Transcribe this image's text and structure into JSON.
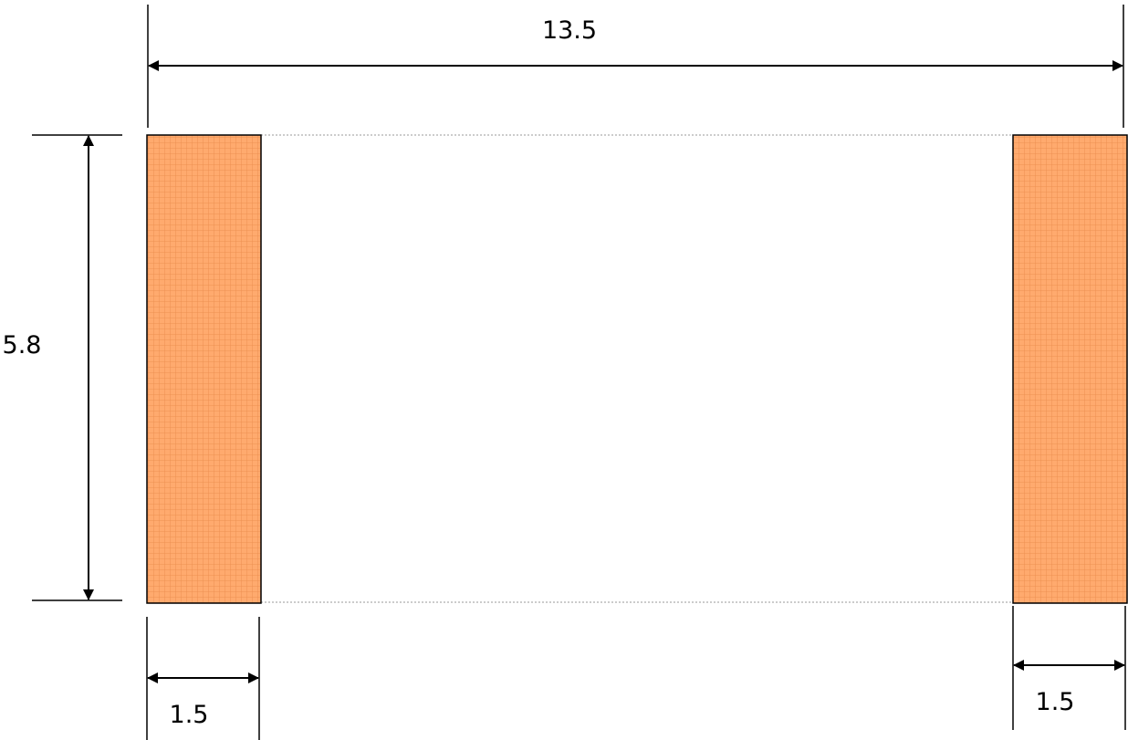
{
  "dimensions": {
    "total_width": "13.5",
    "height": "5.8",
    "left_pad_width": "1.5",
    "right_pad_width": "1.5"
  },
  "colors": {
    "pad_fill": "#FFAA6E",
    "pad_grid": "#E98A4A",
    "outline": "#000000",
    "body_edge": "#999999"
  }
}
